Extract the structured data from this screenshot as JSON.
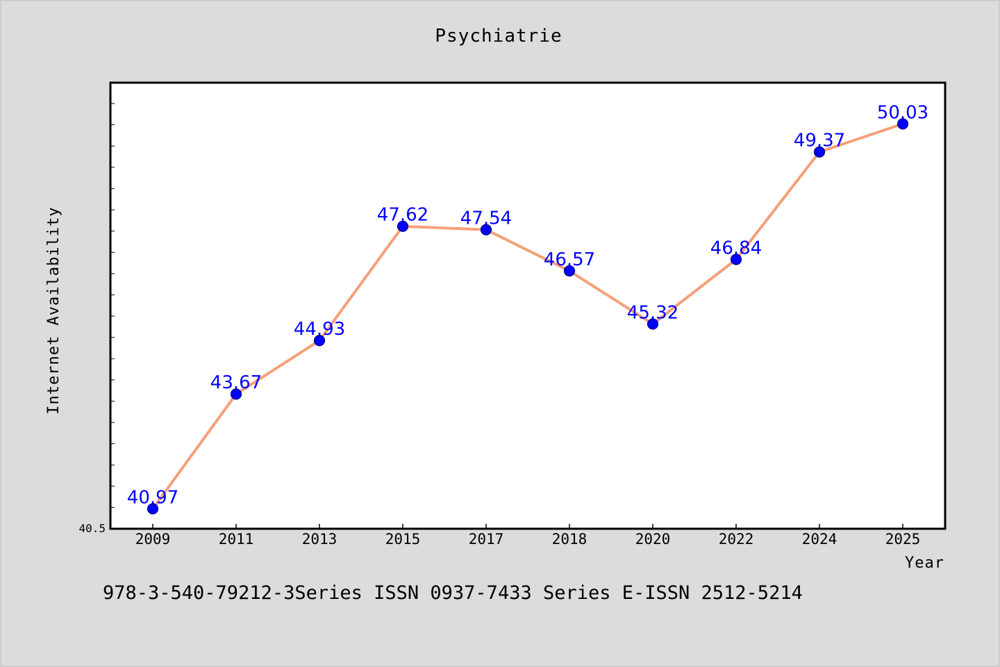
{
  "chart_data": {
    "type": "line",
    "title": "Psychiatrie",
    "xlabel": "Year",
    "ylabel": "Internet Availability",
    "categories": [
      "2009",
      "2011",
      "2013",
      "2015",
      "2017",
      "2018",
      "2020",
      "2022",
      "2024",
      "2025"
    ],
    "series": [
      {
        "values": [
          40.97,
          43.67,
          44.93,
          47.62,
          47.54,
          46.57,
          45.32,
          46.84,
          49.37,
          50.03
        ],
        "labels": [
          "40.97",
          "43.67",
          "44.93",
          "47.62",
          "47.54",
          "46.57",
          "45.32",
          "46.84",
          "49.37",
          "50.03"
        ]
      }
    ],
    "ylim": [
      40.5,
      51.0
    ],
    "ytick_label": "40.5",
    "grid": false,
    "colors": {
      "line": "#f4a07a",
      "marker": "#0000ff",
      "marker_edge": "#000080",
      "data_label": "#0000ff",
      "plot_bg": "#ffffff",
      "page_bg": "#dcdcdc"
    }
  },
  "footer_text": "978-3-540-79212-3Series ISSN 0937-7433 Series E-ISSN 2512-5214"
}
